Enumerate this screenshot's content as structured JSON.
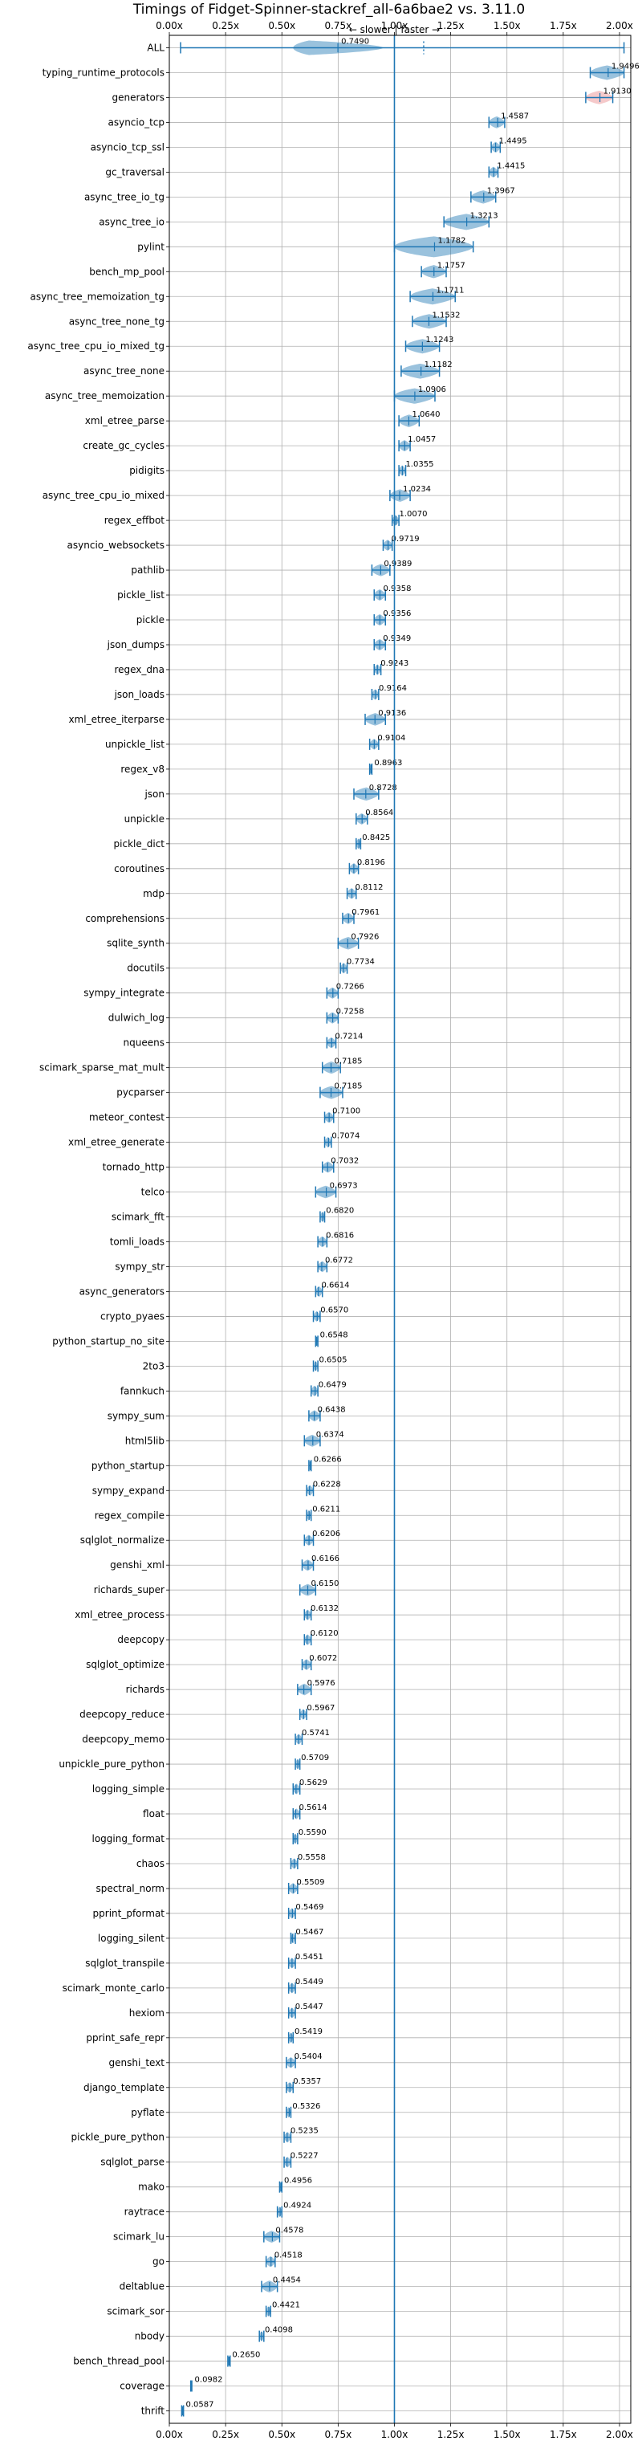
{
  "chart_data": {
    "type": "violin",
    "title": "Timings of Fidget-Spinner-stackref_all-6a6bae2 vs. 3.11.0",
    "annotation": "← slower | faster →",
    "xlim": [
      0.0,
      2.05
    ],
    "xticks": [
      "0.00x",
      "0.25x",
      "0.50x",
      "0.75x",
      "1.00x",
      "1.25x",
      "1.50x",
      "1.75x",
      "2.00x"
    ],
    "reference_line": 1.0,
    "grid": true,
    "colors": {
      "faster": "#1f77b4",
      "slower": "#e8888a"
    },
    "benchmarks": [
      {
        "name": "ALL",
        "value": 0.749,
        "label": "0.7490",
        "low": 0.05,
        "high": 2.02
      },
      {
        "name": "typing_runtime_protocols",
        "value": 1.9496,
        "label": "1.9496",
        "low": 1.87,
        "high": 2.02
      },
      {
        "name": "generators",
        "value": 1.913,
        "label": "1.9130",
        "low": 1.85,
        "high": 1.97
      },
      {
        "name": "asyncio_tcp",
        "value": 1.4587,
        "label": "1.4587",
        "low": 1.42,
        "high": 1.49
      },
      {
        "name": "asyncio_tcp_ssl",
        "value": 1.4495,
        "label": "1.4495",
        "low": 1.43,
        "high": 1.47
      },
      {
        "name": "gc_traversal",
        "value": 1.4415,
        "label": "1.4415",
        "low": 1.42,
        "high": 1.46
      },
      {
        "name": "async_tree_io_tg",
        "value": 1.3967,
        "label": "1.3967",
        "low": 1.34,
        "high": 1.45
      },
      {
        "name": "async_tree_io",
        "value": 1.3213,
        "label": "1.3213",
        "low": 1.22,
        "high": 1.42
      },
      {
        "name": "pylint",
        "value": 1.1782,
        "label": "1.1782",
        "low": 1.0,
        "high": 1.35
      },
      {
        "name": "bench_mp_pool",
        "value": 1.1757,
        "label": "1.1757",
        "low": 1.12,
        "high": 1.23
      },
      {
        "name": "async_tree_memoization_tg",
        "value": 1.1711,
        "label": "1.1711",
        "low": 1.07,
        "high": 1.27
      },
      {
        "name": "async_tree_none_tg",
        "value": 1.1532,
        "label": "1.1532",
        "low": 1.08,
        "high": 1.23
      },
      {
        "name": "async_tree_cpu_io_mixed_tg",
        "value": 1.1243,
        "label": "1.1243",
        "low": 1.05,
        "high": 1.2
      },
      {
        "name": "async_tree_none",
        "value": 1.1182,
        "label": "1.1182",
        "low": 1.03,
        "high": 1.2
      },
      {
        "name": "async_tree_memoization",
        "value": 1.0906,
        "label": "1.0906",
        "low": 1.0,
        "high": 1.18
      },
      {
        "name": "xml_etree_parse",
        "value": 1.064,
        "label": "1.0640",
        "low": 1.02,
        "high": 1.11
      },
      {
        "name": "create_gc_cycles",
        "value": 1.0457,
        "label": "1.0457",
        "low": 1.02,
        "high": 1.07
      },
      {
        "name": "pidigits",
        "value": 1.0355,
        "label": "1.0355",
        "low": 1.02,
        "high": 1.05
      },
      {
        "name": "async_tree_cpu_io_mixed",
        "value": 1.0234,
        "label": "1.0234",
        "low": 0.98,
        "high": 1.07
      },
      {
        "name": "regex_effbot",
        "value": 1.007,
        "label": "1.0070",
        "low": 0.99,
        "high": 1.02
      },
      {
        "name": "asyncio_websockets",
        "value": 0.9719,
        "label": "0.9719",
        "low": 0.95,
        "high": 0.99
      },
      {
        "name": "pathlib",
        "value": 0.9389,
        "label": "0.9389",
        "low": 0.9,
        "high": 0.98
      },
      {
        "name": "pickle_list",
        "value": 0.9358,
        "label": "0.9358",
        "low": 0.91,
        "high": 0.96
      },
      {
        "name": "pickle",
        "value": 0.9356,
        "label": "0.9356",
        "low": 0.91,
        "high": 0.96
      },
      {
        "name": "json_dumps",
        "value": 0.9349,
        "label": "0.9349",
        "low": 0.91,
        "high": 0.96
      },
      {
        "name": "regex_dna",
        "value": 0.9243,
        "label": "0.9243",
        "low": 0.91,
        "high": 0.94
      },
      {
        "name": "json_loads",
        "value": 0.9164,
        "label": "0.9164",
        "low": 0.9,
        "high": 0.93
      },
      {
        "name": "xml_etree_iterparse",
        "value": 0.9136,
        "label": "0.9136",
        "low": 0.87,
        "high": 0.96
      },
      {
        "name": "unpickle_list",
        "value": 0.9104,
        "label": "0.9104",
        "low": 0.89,
        "high": 0.93
      },
      {
        "name": "regex_v8",
        "value": 0.8963,
        "label": "0.8963",
        "low": 0.89,
        "high": 0.9
      },
      {
        "name": "json",
        "value": 0.8728,
        "label": "0.8728",
        "low": 0.82,
        "high": 0.93
      },
      {
        "name": "unpickle",
        "value": 0.8564,
        "label": "0.8564",
        "low": 0.83,
        "high": 0.88
      },
      {
        "name": "pickle_dict",
        "value": 0.8425,
        "label": "0.8425",
        "low": 0.83,
        "high": 0.85
      },
      {
        "name": "coroutines",
        "value": 0.8196,
        "label": "0.8196",
        "low": 0.8,
        "high": 0.84
      },
      {
        "name": "mdp",
        "value": 0.8112,
        "label": "0.8112",
        "low": 0.79,
        "high": 0.83
      },
      {
        "name": "comprehensions",
        "value": 0.7961,
        "label": "0.7961",
        "low": 0.77,
        "high": 0.82
      },
      {
        "name": "sqlite_synth",
        "value": 0.7926,
        "label": "0.7926",
        "low": 0.75,
        "high": 0.84
      },
      {
        "name": "docutils",
        "value": 0.7734,
        "label": "0.7734",
        "low": 0.76,
        "high": 0.79
      },
      {
        "name": "sympy_integrate",
        "value": 0.7266,
        "label": "0.7266",
        "low": 0.7,
        "high": 0.75
      },
      {
        "name": "dulwich_log",
        "value": 0.7258,
        "label": "0.7258",
        "low": 0.7,
        "high": 0.75
      },
      {
        "name": "nqueens",
        "value": 0.7214,
        "label": "0.7214",
        "low": 0.7,
        "high": 0.74
      },
      {
        "name": "scimark_sparse_mat_mult",
        "value": 0.7185,
        "label": "0.7185",
        "low": 0.68,
        "high": 0.76
      },
      {
        "name": "pycparser",
        "value": 0.7185,
        "label": "0.7185",
        "low": 0.67,
        "high": 0.77
      },
      {
        "name": "meteor_contest",
        "value": 0.71,
        "label": "0.7100",
        "low": 0.69,
        "high": 0.73
      },
      {
        "name": "xml_etree_generate",
        "value": 0.7074,
        "label": "0.7074",
        "low": 0.69,
        "high": 0.72
      },
      {
        "name": "tornado_http",
        "value": 0.7032,
        "label": "0.7032",
        "low": 0.68,
        "high": 0.73
      },
      {
        "name": "telco",
        "value": 0.6973,
        "label": "0.6973",
        "low": 0.65,
        "high": 0.74
      },
      {
        "name": "scimark_fft",
        "value": 0.682,
        "label": "0.6820",
        "low": 0.67,
        "high": 0.69
      },
      {
        "name": "tomli_loads",
        "value": 0.6816,
        "label": "0.6816",
        "low": 0.66,
        "high": 0.7
      },
      {
        "name": "sympy_str",
        "value": 0.6772,
        "label": "0.6772",
        "low": 0.66,
        "high": 0.7
      },
      {
        "name": "async_generators",
        "value": 0.6614,
        "label": "0.6614",
        "low": 0.65,
        "high": 0.68
      },
      {
        "name": "crypto_pyaes",
        "value": 0.657,
        "label": "0.6570",
        "low": 0.64,
        "high": 0.67
      },
      {
        "name": "python_startup_no_site",
        "value": 0.6548,
        "label": "0.6548",
        "low": 0.65,
        "high": 0.66
      },
      {
        "name": "2to3",
        "value": 0.6505,
        "label": "0.6505",
        "low": 0.64,
        "high": 0.66
      },
      {
        "name": "fannkuch",
        "value": 0.6479,
        "label": "0.6479",
        "low": 0.63,
        "high": 0.66
      },
      {
        "name": "sympy_sum",
        "value": 0.6438,
        "label": "0.6438",
        "low": 0.62,
        "high": 0.67
      },
      {
        "name": "html5lib",
        "value": 0.6374,
        "label": "0.6374",
        "low": 0.6,
        "high": 0.67
      },
      {
        "name": "python_startup",
        "value": 0.6266,
        "label": "0.6266",
        "low": 0.62,
        "high": 0.63
      },
      {
        "name": "sympy_expand",
        "value": 0.6228,
        "label": "0.6228",
        "low": 0.61,
        "high": 0.64
      },
      {
        "name": "regex_compile",
        "value": 0.6211,
        "label": "0.6211",
        "low": 0.61,
        "high": 0.63
      },
      {
        "name": "sqlglot_normalize",
        "value": 0.6206,
        "label": "0.6206",
        "low": 0.6,
        "high": 0.64
      },
      {
        "name": "genshi_xml",
        "value": 0.6166,
        "label": "0.6166",
        "low": 0.59,
        "high": 0.64
      },
      {
        "name": "richards_super",
        "value": 0.615,
        "label": "0.6150",
        "low": 0.58,
        "high": 0.65
      },
      {
        "name": "xml_etree_process",
        "value": 0.6132,
        "label": "0.6132",
        "low": 0.6,
        "high": 0.63
      },
      {
        "name": "deepcopy",
        "value": 0.612,
        "label": "0.6120",
        "low": 0.6,
        "high": 0.63
      },
      {
        "name": "sqlglot_optimize",
        "value": 0.6072,
        "label": "0.6072",
        "low": 0.59,
        "high": 0.63
      },
      {
        "name": "richards",
        "value": 0.5976,
        "label": "0.5976",
        "low": 0.57,
        "high": 0.63
      },
      {
        "name": "deepcopy_reduce",
        "value": 0.5967,
        "label": "0.5967",
        "low": 0.58,
        "high": 0.61
      },
      {
        "name": "deepcopy_memo",
        "value": 0.5741,
        "label": "0.5741",
        "low": 0.56,
        "high": 0.59
      },
      {
        "name": "unpickle_pure_python",
        "value": 0.5709,
        "label": "0.5709",
        "low": 0.56,
        "high": 0.58
      },
      {
        "name": "logging_simple",
        "value": 0.5629,
        "label": "0.5629",
        "low": 0.55,
        "high": 0.58
      },
      {
        "name": "float",
        "value": 0.5614,
        "label": "0.5614",
        "low": 0.55,
        "high": 0.58
      },
      {
        "name": "logging_format",
        "value": 0.559,
        "label": "0.5590",
        "low": 0.55,
        "high": 0.57
      },
      {
        "name": "chaos",
        "value": 0.5558,
        "label": "0.5558",
        "low": 0.54,
        "high": 0.57
      },
      {
        "name": "spectral_norm",
        "value": 0.5509,
        "label": "0.5509",
        "low": 0.53,
        "high": 0.57
      },
      {
        "name": "pprint_pformat",
        "value": 0.5469,
        "label": "0.5469",
        "low": 0.53,
        "high": 0.56
      },
      {
        "name": "logging_silent",
        "value": 0.5467,
        "label": "0.5467",
        "low": 0.54,
        "high": 0.56
      },
      {
        "name": "sqlglot_transpile",
        "value": 0.5451,
        "label": "0.5451",
        "low": 0.53,
        "high": 0.56
      },
      {
        "name": "scimark_monte_carlo",
        "value": 0.5449,
        "label": "0.5449",
        "low": 0.53,
        "high": 0.56
      },
      {
        "name": "hexiom",
        "value": 0.5447,
        "label": "0.5447",
        "low": 0.53,
        "high": 0.56
      },
      {
        "name": "pprint_safe_repr",
        "value": 0.5419,
        "label": "0.5419",
        "low": 0.53,
        "high": 0.55
      },
      {
        "name": "genshi_text",
        "value": 0.5404,
        "label": "0.5404",
        "low": 0.52,
        "high": 0.56
      },
      {
        "name": "django_template",
        "value": 0.5357,
        "label": "0.5357",
        "low": 0.52,
        "high": 0.55
      },
      {
        "name": "pyflate",
        "value": 0.5326,
        "label": "0.5326",
        "low": 0.52,
        "high": 0.54
      },
      {
        "name": "pickle_pure_python",
        "value": 0.5235,
        "label": "0.5235",
        "low": 0.51,
        "high": 0.54
      },
      {
        "name": "sqlglot_parse",
        "value": 0.5227,
        "label": "0.5227",
        "low": 0.51,
        "high": 0.54
      },
      {
        "name": "mako",
        "value": 0.4956,
        "label": "0.4956",
        "low": 0.49,
        "high": 0.5
      },
      {
        "name": "raytrace",
        "value": 0.4924,
        "label": "0.4924",
        "low": 0.48,
        "high": 0.5
      },
      {
        "name": "scimark_lu",
        "value": 0.4578,
        "label": "0.4578",
        "low": 0.42,
        "high": 0.49
      },
      {
        "name": "go",
        "value": 0.4518,
        "label": "0.4518",
        "low": 0.43,
        "high": 0.47
      },
      {
        "name": "deltablue",
        "value": 0.4454,
        "label": "0.4454",
        "low": 0.41,
        "high": 0.48
      },
      {
        "name": "scimark_sor",
        "value": 0.4421,
        "label": "0.4421",
        "low": 0.43,
        "high": 0.45
      },
      {
        "name": "nbody",
        "value": 0.4098,
        "label": "0.4098",
        "low": 0.4,
        "high": 0.42
      },
      {
        "name": "bench_thread_pool",
        "value": 0.265,
        "label": "0.2650",
        "low": 0.26,
        "high": 0.27
      },
      {
        "name": "coverage",
        "value": 0.0982,
        "label": "0.0982",
        "low": 0.095,
        "high": 0.1
      },
      {
        "name": "thrift",
        "value": 0.0587,
        "label": "0.0587",
        "low": 0.055,
        "high": 0.063
      }
    ]
  }
}
